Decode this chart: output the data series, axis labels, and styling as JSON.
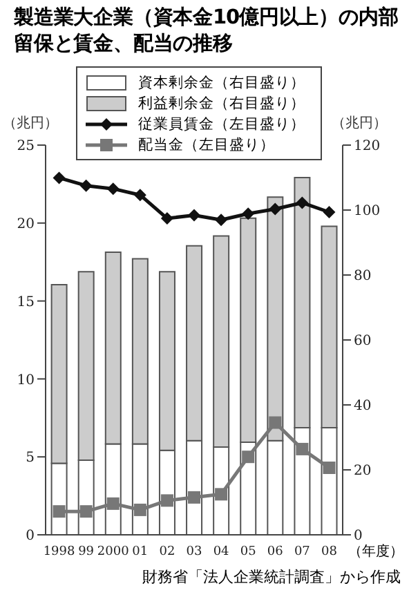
{
  "chart_data": {
    "type": "bar",
    "title": "製造業大企業（資本金10億円以上）の内部留保と賃金、配当の推移",
    "ylabel": "（兆円）",
    "y2label": "（兆円）",
    "xlabel": "（年度）",
    "annotations": [
      "財務省「法人企業統計調査」から作成"
    ],
    "categories": [
      "1998",
      "99",
      "2000",
      "01",
      "02",
      "03",
      "04",
      "05",
      "06",
      "07",
      "08"
    ],
    "stacked": true,
    "legend": "top",
    "ylim": [
      0,
      25
    ],
    "yticks": [
      0,
      5,
      10,
      15,
      20,
      25
    ],
    "y2lim": [
      0,
      120
    ],
    "y2ticks": [
      0,
      20,
      40,
      60,
      80,
      100,
      120
    ],
    "series": [
      {
        "name": "資本剰余金（右目盛り）",
        "axis": "y2",
        "color": "#ffffff",
        "values": [
          22,
          23,
          28,
          28,
          26,
          29,
          27,
          28.5,
          29,
          33,
          33
        ]
      },
      {
        "name": "利益剰余金（右目盛り）",
        "axis": "y2",
        "color": "#cccccc",
        "values": [
          55,
          58,
          59,
          57,
          55,
          60,
          65,
          69,
          75,
          77,
          62
        ]
      },
      {
        "name": "従業員賃金（左目盛り）",
        "type": "line",
        "axis": "y",
        "color": "#111111",
        "marker": "diamond",
        "values": [
          22.9,
          22.4,
          22.2,
          21.8,
          20.3,
          20.5,
          20.2,
          20.6,
          20.9,
          21.3,
          20.7
        ]
      },
      {
        "name": "配当金（左目盛り）",
        "type": "line",
        "axis": "y",
        "color": "#777777",
        "marker": "square",
        "values": [
          1.5,
          1.5,
          2.0,
          1.6,
          2.2,
          2.4,
          2.6,
          5.0,
          7.2,
          5.5,
          4.3
        ]
      }
    ]
  }
}
